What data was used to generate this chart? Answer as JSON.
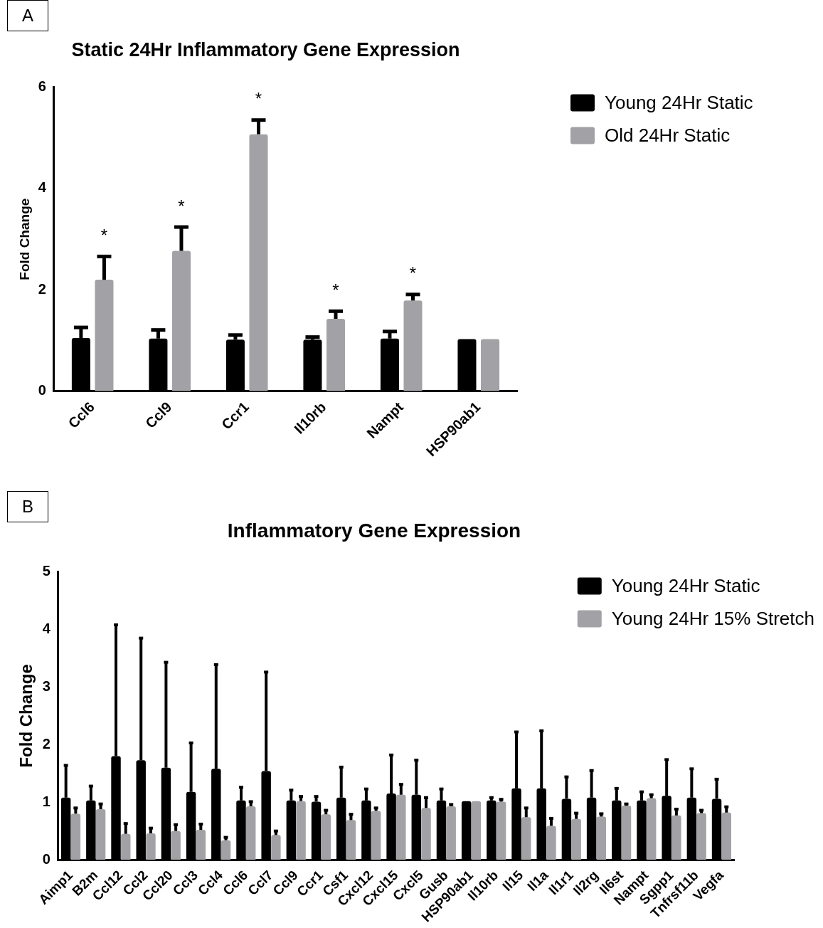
{
  "chart_data": [
    {
      "type": "bar",
      "title": "Static 24Hr Inflammatory Gene Expression",
      "ylabel": "Fold Change",
      "categories": [
        "Ccl6",
        "Ccl9",
        "Ccr1",
        "Il10rb",
        "Nampt",
        "HSP90ab1"
      ],
      "series": [
        {
          "name": "Young 24Hr Static",
          "color": "#000000",
          "values": [
            1.05,
            1.04,
            1.02,
            1.02,
            1.04,
            1.03
          ],
          "errors": [
            [
              1.05,
              1.26
            ],
            [
              1.04,
              1.21
            ],
            [
              1.02,
              1.11
            ],
            [
              1.02,
              1.07
            ],
            [
              1.04,
              1.18
            ],
            null
          ]
        },
        {
          "name": "Old 24Hr Static",
          "color": "#a2a2a6",
          "values": [
            2.2,
            2.77,
            5.07,
            1.43,
            1.79,
            1.03
          ],
          "errors": [
            [
              2.2,
              2.66
            ],
            [
              2.77,
              3.24
            ],
            [
              5.07,
              5.35
            ],
            [
              1.43,
              1.58
            ],
            [
              1.79,
              1.91
            ],
            null
          ]
        }
      ],
      "ylim": [
        0,
        6
      ],
      "yticks": [
        0,
        2,
        4,
        6
      ],
      "grid": false,
      "legend": "right",
      "annotations": [
        "A",
        "*",
        "*",
        "*",
        "*",
        "*"
      ]
    },
    {
      "type": "bar",
      "title": "Inflammatory Gene Expression",
      "ylabel": "Fold Change",
      "categories": [
        "Aimp1",
        "B2m",
        "Ccl12",
        "Ccl2",
        "Ccl20",
        "Ccl3",
        "Ccl4",
        "Ccl6",
        "Ccl7",
        "Ccl9",
        "Ccr1",
        "Csf1",
        "Cxcl12",
        "Cxcl15",
        "Cxcl5",
        "Gusb",
        "HSP90ab1",
        "Il10rb",
        "Il15",
        "Il1a",
        "Il1r1",
        "Il2rg",
        "Il6st",
        "Nampt",
        "Sgpp1",
        "Tnfrsf11b",
        "Vegfa"
      ],
      "series": [
        {
          "name": "Young 24Hr Static",
          "color": "#000000",
          "values": [
            1.08,
            1.03,
            1.8,
            1.73,
            1.6,
            1.18,
            1.58,
            1.03,
            1.54,
            1.03,
            1.01,
            1.08,
            1.03,
            1.15,
            1.13,
            1.03,
            1.02,
            1.03,
            1.24,
            1.24,
            1.06,
            1.08,
            1.03,
            1.03,
            1.11,
            1.08,
            1.06
          ],
          "errors": [
            [
              1.08,
              1.64
            ],
            [
              1.03,
              1.28
            ],
            [
              1.8,
              4.08
            ],
            [
              1.73,
              3.85
            ],
            [
              1.6,
              3.43
            ],
            [
              1.18,
              2.03
            ],
            [
              1.58,
              3.39
            ],
            [
              1.03,
              1.26
            ],
            [
              1.54,
              3.26
            ],
            [
              1.03,
              1.21
            ],
            [
              1.01,
              1.1
            ],
            [
              1.08,
              1.61
            ],
            [
              1.03,
              1.23
            ],
            [
              1.15,
              1.82
            ],
            [
              1.13,
              1.73
            ],
            [
              1.03,
              1.23
            ],
            null,
            [
              1.03,
              1.08
            ],
            [
              1.24,
              2.22
            ],
            [
              1.24,
              2.24
            ],
            [
              1.06,
              1.44
            ],
            [
              1.08,
              1.55
            ],
            [
              1.03,
              1.24
            ],
            [
              1.03,
              1.18
            ],
            [
              1.11,
              1.74
            ],
            [
              1.08,
              1.58
            ],
            [
              1.06,
              1.4
            ]
          ]
        },
        {
          "name": "Young 24Hr 15% Stretch",
          "color": "#a2a2a6",
          "values": [
            0.8,
            0.88,
            0.45,
            0.46,
            0.5,
            0.52,
            0.34,
            0.93,
            0.43,
            1.02,
            0.79,
            0.69,
            0.85,
            1.13,
            0.9,
            0.93,
            1.02,
            1.01,
            0.74,
            0.59,
            0.71,
            0.75,
            0.94,
            1.07,
            0.77,
            0.81,
            0.82
          ],
          "errors": [
            [
              0.8,
              0.9
            ],
            [
              0.88,
              0.97
            ],
            [
              0.45,
              0.63
            ],
            [
              0.46,
              0.55
            ],
            [
              0.5,
              0.61
            ],
            [
              0.52,
              0.62
            ],
            [
              0.34,
              0.39
            ],
            [
              0.93,
              1.01
            ],
            [
              0.43,
              0.5
            ],
            [
              1.02,
              1.1
            ],
            [
              0.79,
              0.86
            ],
            [
              0.69,
              0.79
            ],
            [
              0.85,
              0.9
            ],
            [
              1.13,
              1.31
            ],
            [
              0.9,
              1.08
            ],
            [
              0.93,
              0.96
            ],
            null,
            [
              1.01,
              1.05
            ],
            [
              0.74,
              0.9
            ],
            [
              0.59,
              0.72
            ],
            [
              0.71,
              0.81
            ],
            [
              0.75,
              0.8
            ],
            [
              0.94,
              0.97
            ],
            [
              1.07,
              1.13
            ],
            [
              0.77,
              0.88
            ],
            [
              0.81,
              0.86
            ],
            [
              0.82,
              0.92
            ]
          ]
        }
      ],
      "ylim": [
        0,
        5
      ],
      "yticks": [
        0,
        1,
        2,
        3,
        4,
        5
      ],
      "grid": false,
      "legend": "top right",
      "annotations": [
        "B"
      ]
    }
  ]
}
